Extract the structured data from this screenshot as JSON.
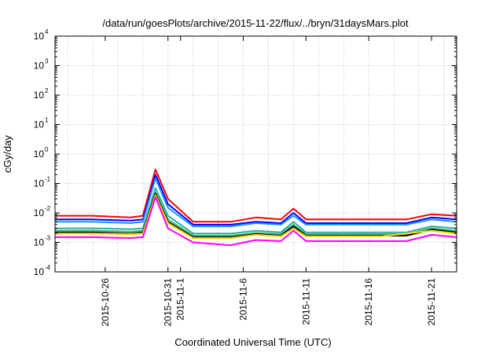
{
  "chart_data": {
    "type": "line",
    "title": "/data/run/goesPlots/archive/2015-11-22/flux/../bryn/31daysMars.plot",
    "xlabel": "Coordinated Universal Time (UTC)",
    "ylabel": "cGy/day",
    "yscale": "log",
    "ylim": [
      0.0001,
      10000
    ],
    "y_ticks": [
      {
        "base": "10",
        "exp": "-4",
        "value": 0.0001
      },
      {
        "base": "10",
        "exp": "-3",
        "value": 0.001
      },
      {
        "base": "10",
        "exp": "-2",
        "value": 0.01
      },
      {
        "base": "10",
        "exp": "-1",
        "value": 0.1
      },
      {
        "base": "10",
        "exp": "0",
        "value": 1
      },
      {
        "base": "10",
        "exp": "1",
        "value": 10
      },
      {
        "base": "10",
        "exp": "2",
        "value": 100
      },
      {
        "base": "10",
        "exp": "3",
        "value": 1000
      },
      {
        "base": "10",
        "exp": "4",
        "value": 10000
      }
    ],
    "xlim": [
      "2015-10-22",
      "2015-11-23"
    ],
    "x_ticks": [
      {
        "label": "2015-10-26",
        "date": "2015-10-26"
      },
      {
        "label": "2015-10-31",
        "date": "2015-10-31"
      },
      {
        "label": "2015-11-1",
        "date": "2015-11-01"
      },
      {
        "label": "2015-11-6",
        "date": "2015-11-06"
      },
      {
        "label": "2015-11-11",
        "date": "2015-11-11"
      },
      {
        "label": "2015-11-16",
        "date": "2015-11-16"
      },
      {
        "label": "2015-11-21",
        "date": "2015-11-21"
      }
    ],
    "x_grid": [
      "2015-10-23",
      "2015-10-25",
      "2015-10-27",
      "2015-10-29",
      "2015-10-31",
      "2015-11-02",
      "2015-11-04",
      "2015-11-06",
      "2015-11-08",
      "2015-11-10",
      "2015-11-12",
      "2015-11-14",
      "2015-11-16",
      "2015-11-18",
      "2015-11-20",
      "2015-11-22"
    ],
    "grid": true,
    "legend": "none",
    "series": [
      {
        "color": "#ff0000",
        "x": [
          "2015-10-22",
          "2015-10-25",
          "2015-10-28",
          "2015-10-29",
          "2015-10-30",
          "2015-10-31",
          "2015-11-02",
          "2015-11-05",
          "2015-11-07",
          "2015-11-09",
          "2015-11-10",
          "2015-11-11",
          "2015-11-13",
          "2015-11-17",
          "2015-11-19",
          "2015-11-21",
          "2015-11-23"
        ],
        "y": [
          0.008,
          0.008,
          0.007,
          0.008,
          0.3,
          0.03,
          0.005,
          0.005,
          0.007,
          0.006,
          0.014,
          0.006,
          0.006,
          0.006,
          0.006,
          0.009,
          0.008
        ]
      },
      {
        "color": "#0000ff",
        "x": [
          "2015-10-22",
          "2015-10-25",
          "2015-10-28",
          "2015-10-29",
          "2015-10-30",
          "2015-10-31",
          "2015-11-02",
          "2015-11-05",
          "2015-11-07",
          "2015-11-09",
          "2015-11-10",
          "2015-11-11",
          "2015-11-13",
          "2015-11-17",
          "2015-11-19",
          "2015-11-21",
          "2015-11-23"
        ],
        "y": [
          0.006,
          0.006,
          0.0055,
          0.006,
          0.2,
          0.02,
          0.004,
          0.004,
          0.005,
          0.0045,
          0.01,
          0.0045,
          0.0045,
          0.0045,
          0.0045,
          0.007,
          0.006
        ]
      },
      {
        "color": "#1e90ff",
        "x": [
          "2015-10-22",
          "2015-10-25",
          "2015-10-28",
          "2015-10-29",
          "2015-10-30",
          "2015-10-31",
          "2015-11-02",
          "2015-11-05",
          "2015-11-07",
          "2015-11-09",
          "2015-11-10",
          "2015-11-11",
          "2015-11-13",
          "2015-11-17",
          "2015-11-19",
          "2015-11-21",
          "2015-11-23"
        ],
        "y": [
          0.005,
          0.005,
          0.0045,
          0.005,
          0.15,
          0.015,
          0.0035,
          0.0035,
          0.0045,
          0.004,
          0.008,
          0.004,
          0.004,
          0.004,
          0.004,
          0.006,
          0.005
        ]
      },
      {
        "color": "#20b2aa",
        "x": [
          "2015-10-22",
          "2015-10-25",
          "2015-10-28",
          "2015-10-29",
          "2015-10-30",
          "2015-10-31",
          "2015-11-02",
          "2015-11-05",
          "2015-11-07",
          "2015-11-09",
          "2015-11-10",
          "2015-11-11",
          "2015-11-13",
          "2015-11-17",
          "2015-11-19",
          "2015-11-21",
          "2015-11-23"
        ],
        "y": [
          0.003,
          0.003,
          0.0028,
          0.003,
          0.07,
          0.008,
          0.002,
          0.002,
          0.0025,
          0.0022,
          0.005,
          0.0022,
          0.0022,
          0.0022,
          0.0022,
          0.0035,
          0.003
        ]
      },
      {
        "color": "#3cb371",
        "x": [
          "2015-10-22",
          "2015-10-25",
          "2015-10-28",
          "2015-10-29",
          "2015-10-30",
          "2015-10-31",
          "2015-11-02",
          "2015-11-05",
          "2015-11-07",
          "2015-11-09",
          "2015-11-10",
          "2015-11-11",
          "2015-11-13",
          "2015-11-17",
          "2015-11-19",
          "2015-11-21",
          "2015-11-23"
        ],
        "y": [
          0.0025,
          0.0025,
          0.0023,
          0.0025,
          0.05,
          0.006,
          0.0017,
          0.0017,
          0.0021,
          0.0019,
          0.004,
          0.0019,
          0.0019,
          0.0019,
          0.0019,
          0.003,
          0.0025
        ]
      },
      {
        "color": "#000000",
        "x": [
          "2015-10-22",
          "2015-10-25",
          "2015-10-28",
          "2015-10-29",
          "2015-10-30",
          "2015-10-31",
          "2015-11-02",
          "2015-11-05",
          "2015-11-07",
          "2015-11-09",
          "2015-11-10",
          "2015-11-11",
          "2015-11-13",
          "2015-11-17",
          "2015-11-19",
          "2015-11-21",
          "2015-11-23"
        ],
        "y": [
          0.0022,
          0.0022,
          0.002,
          0.0022,
          0.045,
          0.005,
          0.0015,
          0.0015,
          0.0019,
          0.0017,
          0.0035,
          0.0017,
          0.0017,
          0.0017,
          0.0017,
          0.0027,
          0.0022
        ]
      },
      {
        "color": "#ffd700",
        "x": [
          "2015-10-22",
          "2015-10-25",
          "2015-10-28",
          "2015-10-29",
          "2015-10-30",
          "2015-10-31",
          "2015-11-02",
          "2015-11-05",
          "2015-11-07",
          "2015-11-09",
          "2015-11-10",
          "2015-11-11",
          "2015-11-13",
          "2015-11-17",
          "2015-11-19",
          "2015-11-21",
          "2015-11-23"
        ],
        "y": [
          0.002,
          0.002,
          0.0019,
          0.002,
          0.04,
          0.0045,
          0.0014,
          0.0014,
          0.0018,
          0.0016,
          0.003,
          0.0016,
          0.0016,
          0.0016,
          0.002,
          0.0025,
          0.002
        ]
      },
      {
        "color": "#ff00ff",
        "x": [
          "2015-10-22",
          "2015-10-25",
          "2015-10-28",
          "2015-10-29",
          "2015-10-30",
          "2015-10-31",
          "2015-11-02",
          "2015-11-05",
          "2015-11-07",
          "2015-11-09",
          "2015-11-10",
          "2015-11-11",
          "2015-11-13",
          "2015-11-17",
          "2015-11-19",
          "2015-11-21",
          "2015-11-23"
        ],
        "y": [
          0.0015,
          0.0015,
          0.0014,
          0.0015,
          0.035,
          0.003,
          0.001,
          0.0008,
          0.0012,
          0.0011,
          0.0025,
          0.0011,
          0.0011,
          0.0011,
          0.0011,
          0.0018,
          0.0015
        ]
      }
    ]
  }
}
